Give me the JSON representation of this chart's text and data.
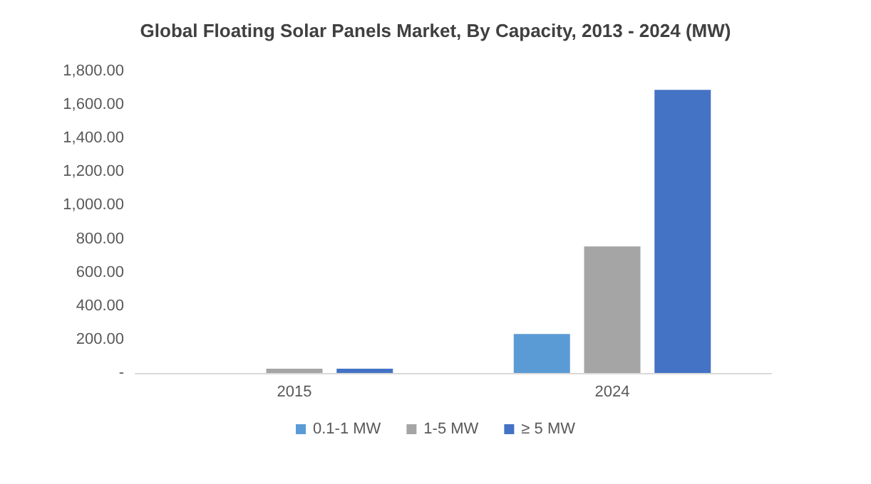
{
  "chart_data": {
    "type": "bar",
    "title": "Global Floating Solar Panels Market, By Capacity, 2013 - 2024 (MW)",
    "categories": [
      "2015",
      "2024"
    ],
    "series": [
      {
        "name": "0.1-1 MW",
        "color": "#5b9bd5",
        "values": [
          null,
          232
        ]
      },
      {
        "name": "1-5 MW",
        "color": "#a5a5a5",
        "values": [
          25,
          755
        ]
      },
      {
        "name": "≥ 5 MW",
        "color": "#4472c4",
        "values": [
          25,
          1689
        ]
      }
    ],
    "ylim": [
      0,
      1800
    ],
    "yticks": [
      {
        "value": 0,
        "label": "-"
      },
      {
        "value": 200,
        "label": "200.00"
      },
      {
        "value": 400,
        "label": "400.00"
      },
      {
        "value": 600,
        "label": "600.00"
      },
      {
        "value": 800,
        "label": "800.00"
      },
      {
        "value": 1000,
        "label": "1,000.00"
      },
      {
        "value": 1200,
        "label": "1,200.00"
      },
      {
        "value": 1400,
        "label": "1,400.00"
      },
      {
        "value": 1600,
        "label": "1,600.00"
      },
      {
        "value": 1800,
        "label": "1,800.00"
      }
    ],
    "grid": false,
    "legend": "bottom"
  }
}
